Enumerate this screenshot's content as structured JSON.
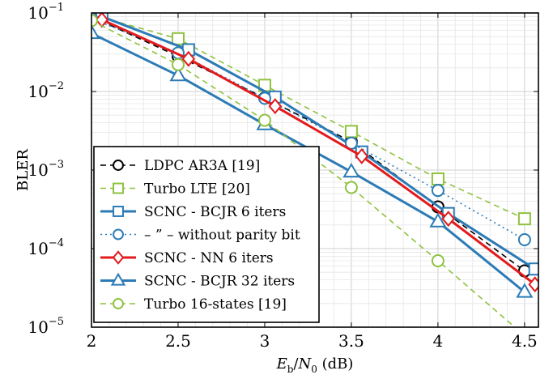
{
  "chart_data": {
    "type": "line",
    "xlabel": "E_b/N_0 (dB)",
    "ylabel": "BLER",
    "xlim": [
      2,
      4.58
    ],
    "ylim": [
      1e-05,
      0.1
    ],
    "y_scale": "log",
    "grid": true,
    "legend_position": "bottom-left",
    "x_ticks": [
      "2",
      "2.5",
      "3",
      "3.5",
      "4",
      "4.5"
    ],
    "y_ticks": [
      {
        "base": "10",
        "exp": "−1",
        "value": 0.1
      },
      {
        "base": "10",
        "exp": "−2",
        "value": 0.01
      },
      {
        "base": "10",
        "exp": "−3",
        "value": 0.001
      },
      {
        "base": "10",
        "exp": "−4",
        "value": 0.0001
      },
      {
        "base": "10",
        "exp": "−5",
        "value": 1e-05
      }
    ],
    "series": [
      {
        "name": "LDPC AR3A [19]",
        "color": "#000000",
        "line_style": "dashed",
        "marker": "circle",
        "x": [
          2.0,
          2.5,
          3.0,
          3.5,
          4.0,
          4.5
        ],
        "y": [
          0.09,
          0.028,
          0.0083,
          0.0023,
          0.00034,
          5.2e-05
        ]
      },
      {
        "name": "Turbo LTE [20]",
        "color": "#8fc23f",
        "line_style": "dashed",
        "marker": "square",
        "x": [
          2.0,
          2.5,
          3.0,
          3.5,
          4.0,
          4.5
        ],
        "y": [
          0.095,
          0.047,
          0.012,
          0.0031,
          0.00077,
          0.00024
        ]
      },
      {
        "name": "SCNC - BCJR 6 iters",
        "color": "#2c7bb6",
        "line_style": "solid",
        "marker": "square",
        "x": [
          2.0,
          2.5,
          3.0,
          3.5,
          4.0,
          4.5
        ],
        "y": [
          0.09,
          0.034,
          0.0085,
          0.0017,
          0.00028,
          5.5e-05
        ]
      },
      {
        "name": "– ” – without parity bit",
        "color": "#2c7bb6",
        "line_style": "dotted",
        "marker": "circle",
        "x": [
          2.0,
          2.5,
          3.0,
          3.5,
          4.0,
          4.5
        ],
        "y": [
          0.085,
          0.031,
          0.0082,
          0.0022,
          0.00055,
          0.00013
        ]
      },
      {
        "name": "SCNC - NN 6 iters",
        "color": "#e31a1c",
        "line_style": "solid",
        "marker": "diamond",
        "x": [
          2.0,
          2.5,
          3.0,
          3.5,
          4.0,
          4.5
        ],
        "y": [
          0.082,
          0.026,
          0.0065,
          0.0015,
          0.00024,
          3.5e-05
        ]
      },
      {
        "name": "SCNC - BCJR 32 iters",
        "color": "#2c7bb6",
        "line_style": "solid",
        "marker": "triangle",
        "x": [
          2.0,
          2.5,
          3.0,
          3.5,
          4.0,
          4.5
        ],
        "y": [
          0.055,
          0.016,
          0.0038,
          0.00095,
          0.00022,
          2.8e-05
        ]
      },
      {
        "name": "Turbo 16-states [19]",
        "color": "#8fc23f",
        "line_style": "dashed",
        "marker": "circle",
        "x": [
          2.0,
          2.5,
          3.0,
          3.5,
          4.0,
          4.5
        ],
        "y": [
          0.08,
          0.022,
          0.0043,
          0.0006,
          7e-05,
          7.8e-06
        ]
      }
    ]
  }
}
